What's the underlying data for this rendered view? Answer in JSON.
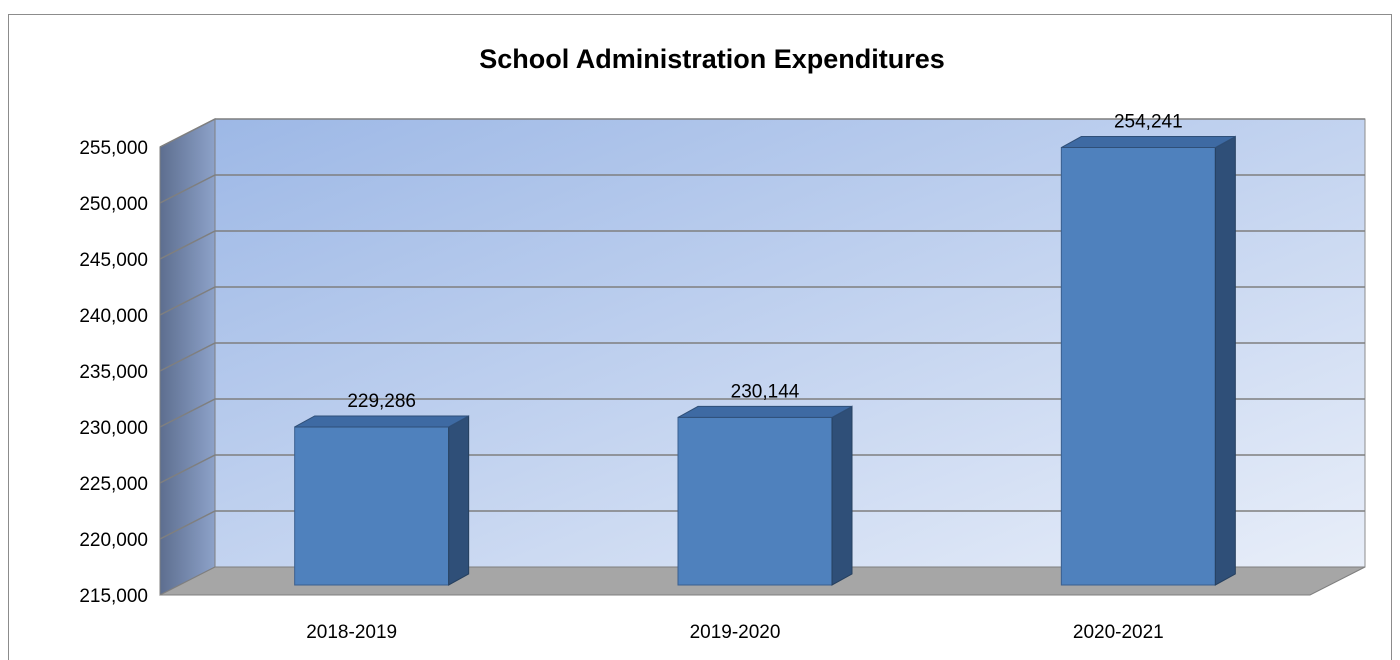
{
  "chart_data": {
    "type": "bar",
    "title": "School Administration Expenditures",
    "categories": [
      "2018-2019",
      "2019-2020",
      "2020-2021"
    ],
    "values": [
      229286,
      230144,
      254241
    ],
    "data_labels": [
      "229,286",
      "230,144",
      "254,241"
    ],
    "ylim": [
      215000,
      255000
    ],
    "yticks": [
      215000,
      220000,
      225000,
      230000,
      235000,
      240000,
      245000,
      250000,
      255000
    ],
    "ytick_labels": [
      "215,000",
      "220,000",
      "225,000",
      "230,000",
      "235,000",
      "240,000",
      "245,000",
      "250,000",
      "255,000"
    ],
    "xlabel": "",
    "ylabel": "",
    "grid": true,
    "legend": "none",
    "colors": {
      "bar_front": "#4f81bd",
      "bar_side": "#2f4f78",
      "bar_top": "#3e6aa3",
      "floor": "#a6a6a6",
      "wall_start": "#9db8e6",
      "wall_end": "#e8eef9",
      "side_wall": "#6a7fa6"
    }
  }
}
